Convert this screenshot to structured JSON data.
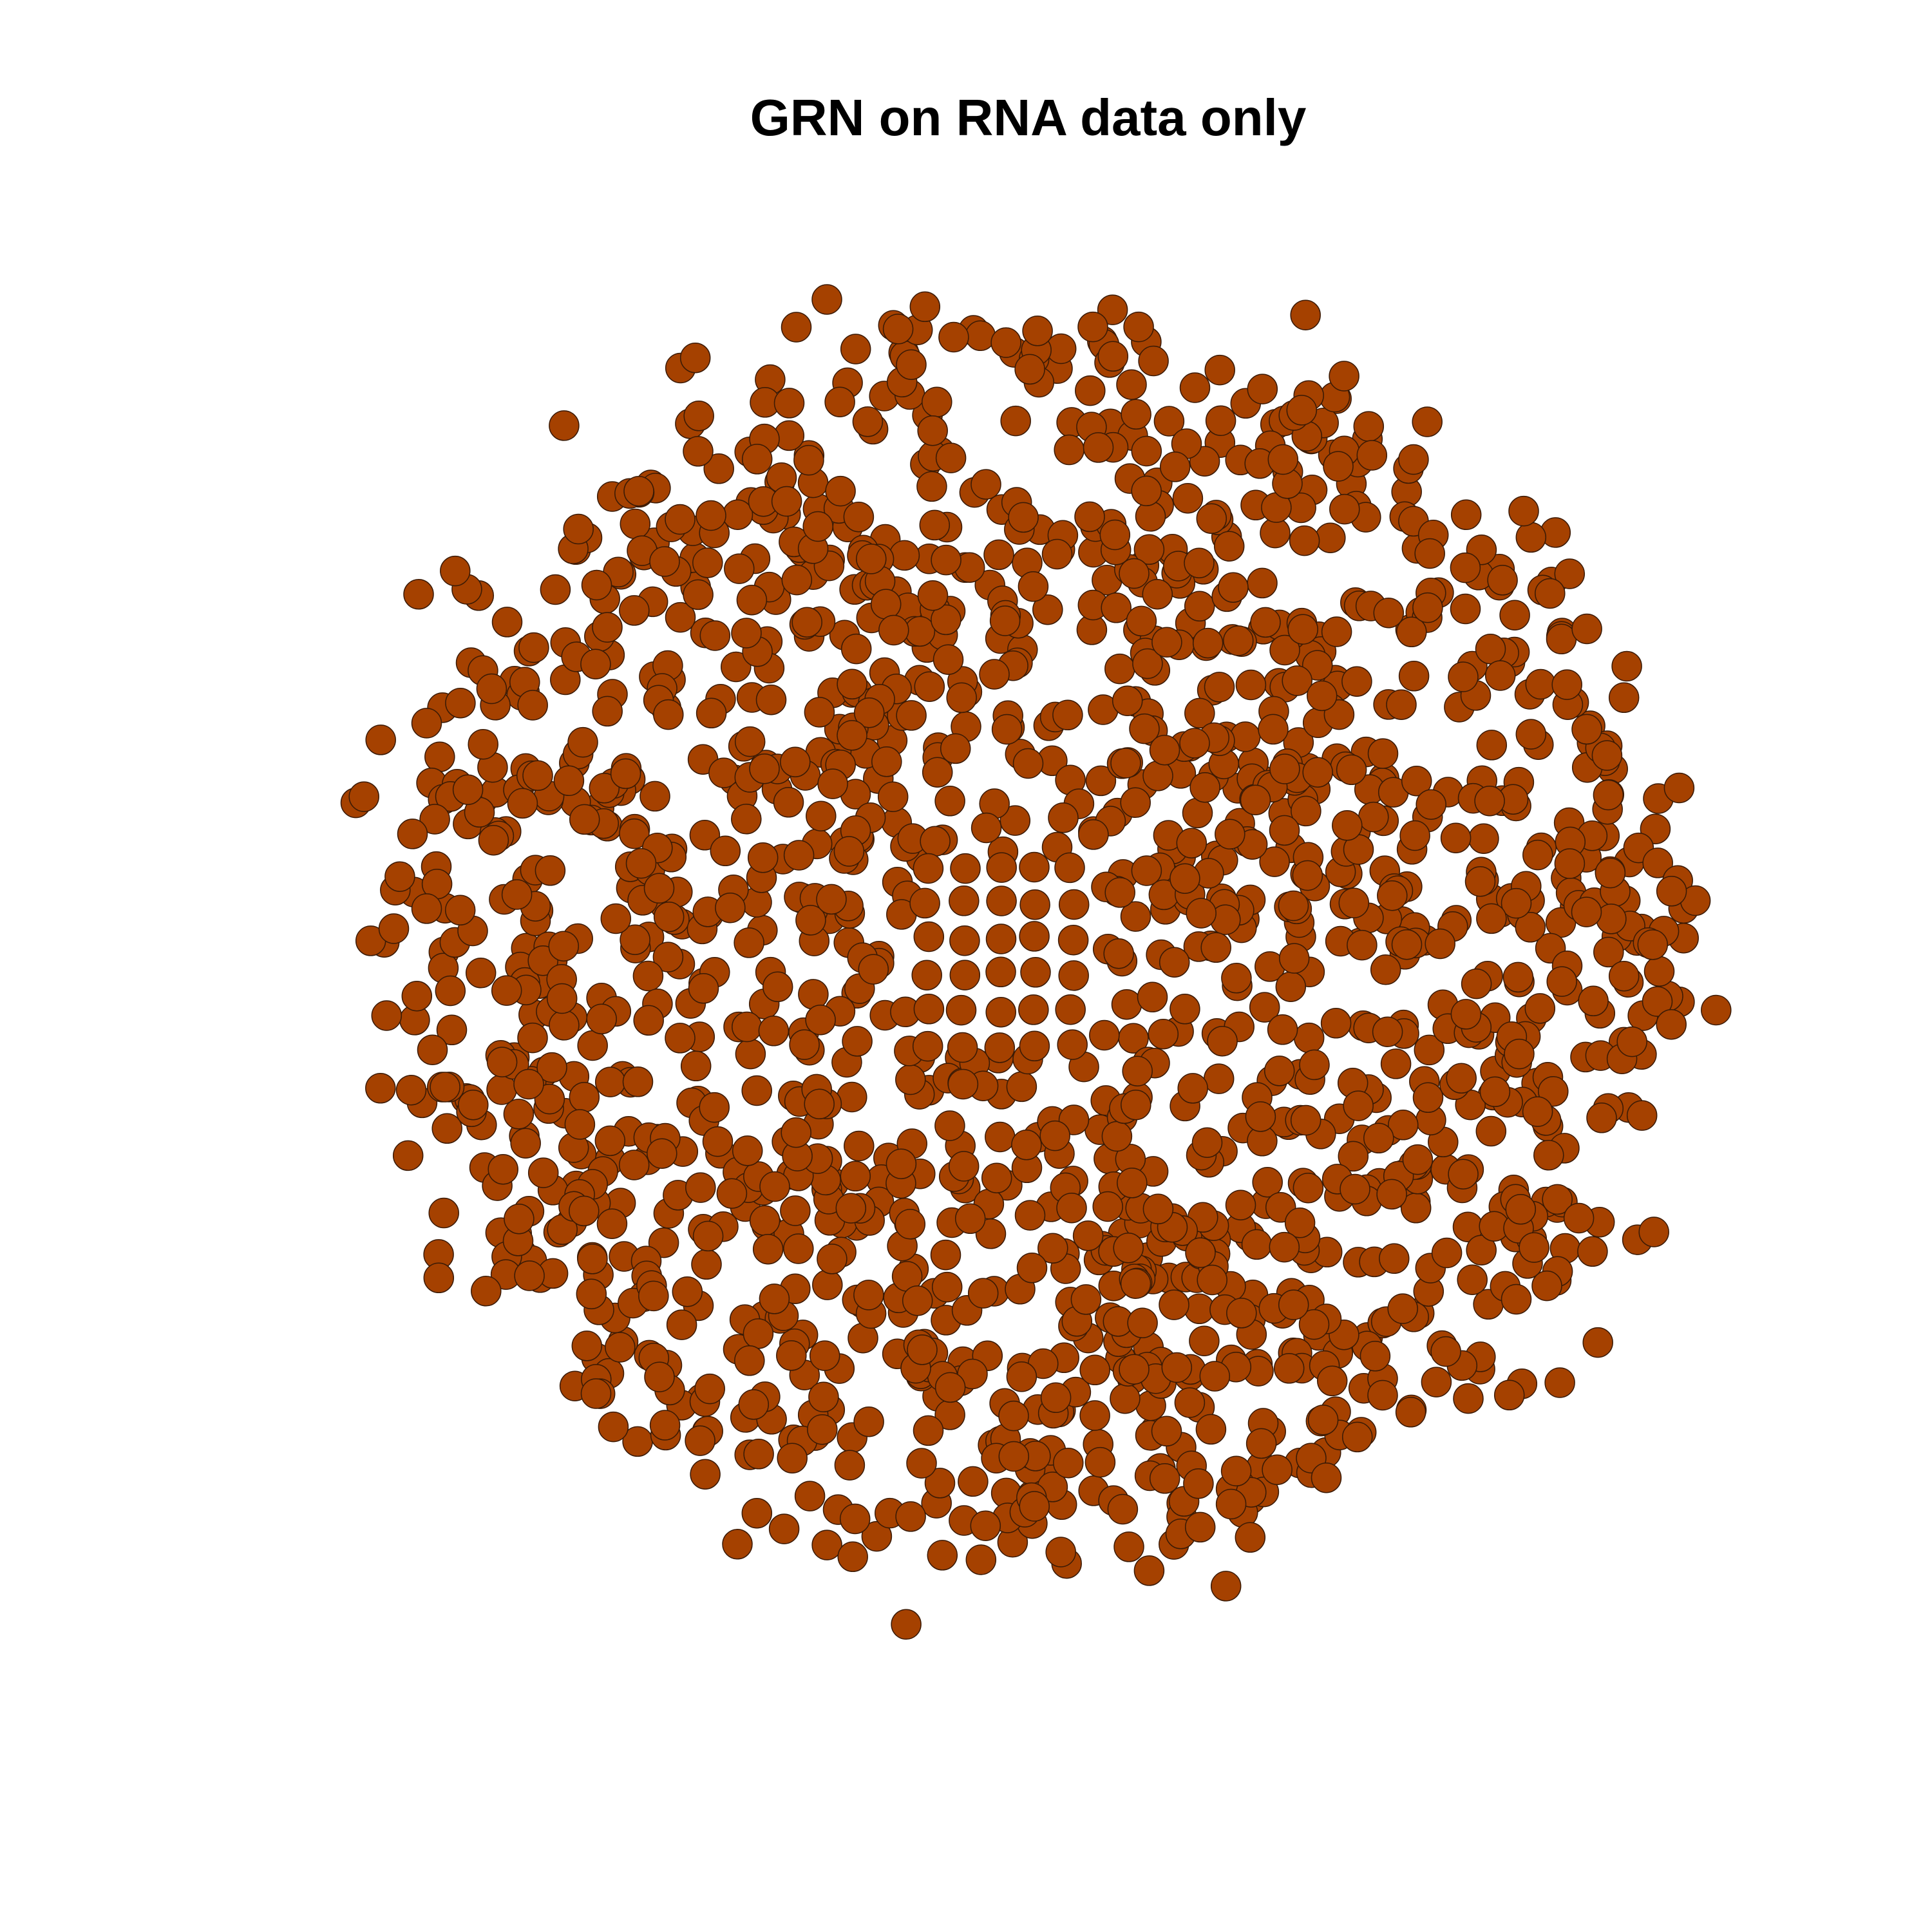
{
  "title": "GRN on RNA data only",
  "network": {
    "node_color": "#a54100",
    "node_border_color": "#3a1a05",
    "layout": "force-directed cloud with a small grid-like core",
    "edges_drawn": false
  }
}
